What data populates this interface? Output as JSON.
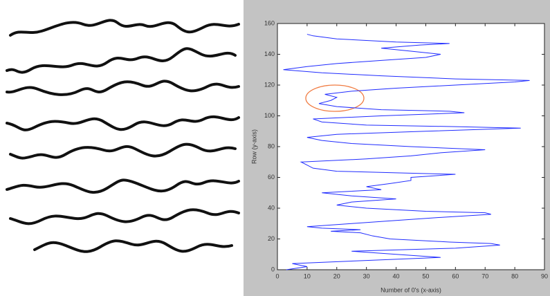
{
  "chart_data": {
    "type": "line",
    "x_label": "Number of 0's (x-axis)",
    "y_label": "Row (y-axis)",
    "y": [
      0,
      2,
      4,
      6,
      8,
      10,
      12,
      14,
      16,
      17,
      18,
      20,
      22,
      24,
      25,
      26,
      27,
      28,
      30,
      32,
      34,
      36,
      37,
      38,
      40,
      42,
      44,
      46,
      48,
      50,
      52,
      54,
      56,
      58,
      60,
      62,
      63,
      64,
      66,
      68,
      70,
      72,
      74,
      76,
      78,
      80,
      82,
      84,
      86,
      88,
      90,
      92,
      93,
      94,
      96,
      98,
      100,
      102,
      103,
      104,
      106,
      108,
      110,
      112,
      114,
      116,
      118,
      120,
      122,
      123,
      124,
      126,
      128,
      130,
      132,
      134,
      136,
      138,
      140,
      142,
      144,
      146,
      147,
      148,
      150,
      152,
      153
    ],
    "series": [
      {
        "color": "#1f2bff",
        "values": [
          3,
          10,
          5,
          30,
          55,
          40,
          25,
          60,
          75,
          72,
          58,
          38,
          32,
          28,
          18,
          28,
          15,
          10,
          25,
          40,
          55,
          72,
          70,
          50,
          30,
          20,
          25,
          40,
          25,
          15,
          35,
          30,
          38,
          45,
          45,
          60,
          40,
          20,
          12,
          10,
          8,
          30,
          45,
          55,
          70,
          45,
          25,
          15,
          10,
          20,
          50,
          82,
          60,
          30,
          15,
          12,
          35,
          63,
          58,
          35,
          20,
          14,
          18,
          20,
          16,
          25,
          40,
          60,
          80,
          85,
          60,
          35,
          15,
          2,
          10,
          20,
          35,
          50,
          55,
          45,
          35,
          48,
          58,
          40,
          20,
          12,
          10
        ]
      }
    ],
    "xlim": [
      0,
      90
    ],
    "xticks": [
      0,
      10,
      20,
      30,
      40,
      50,
      60,
      70,
      80,
      90
    ],
    "ylim": [
      0,
      160
    ],
    "yticks": [
      0,
      20,
      40,
      60,
      80,
      100,
      120,
      140,
      160
    ]
  }
}
